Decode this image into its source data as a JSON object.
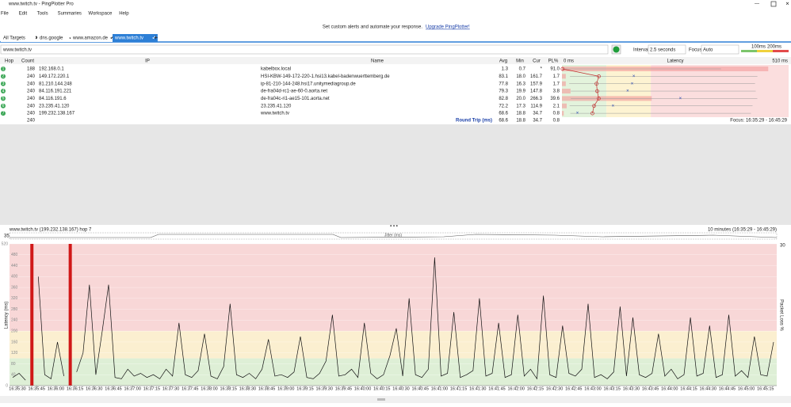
{
  "window": {
    "title": "www.twitch.tv - PingPlotter Pro"
  },
  "menu": [
    "File",
    "Edit",
    "Tools",
    "Summaries",
    "Workspace",
    "Help"
  ],
  "banner": {
    "text": "Set custom alerts and automate your response.",
    "link": "Upgrade PingPlotter!"
  },
  "tabs": [
    "All Targets",
    "dns.google",
    "www.amazon.de",
    "www.twitch.tv"
  ],
  "toolbar": {
    "target": "www.twitch.tv",
    "interval_label": "Interval",
    "interval": "2.5 seconds",
    "focus_label": "Focus",
    "focus": "Auto",
    "legend": [
      "100ms",
      "200ms"
    ]
  },
  "table": {
    "headers": [
      "Hop",
      "Count",
      "IP",
      "Name",
      "Avg",
      "Min",
      "Cur",
      "PL%",
      "Latency"
    ],
    "rows": [
      [
        "1",
        "188",
        "192.168.0.1",
        "kabelbox.local",
        "1.3",
        "0.7",
        "*",
        "91.0"
      ],
      [
        "2",
        "240",
        "149.172.220.1",
        "HSI-KBW-149-172-220-1.hsi13.kabel-badenwuerttemberg.de",
        "83.1",
        "18.0",
        "161.7",
        "1.7"
      ],
      [
        "3",
        "240",
        "81.210.144.248",
        "ip-81-210-144-248.hsi17.unitymediagroup.de",
        "77.8",
        "16.3",
        "157.9",
        "1.7"
      ],
      [
        "4",
        "240",
        "84.116.191.221",
        "de-fra04d-rc1-ae-60-0.aorta.net",
        "79.3",
        "19.9",
        "147.8",
        "3.8"
      ],
      [
        "5",
        "240",
        "84.116.191.6",
        "de-fra04c-ri1-ae15-101.aorta.net",
        "82.8",
        "20.0",
        "266.3",
        "39.6"
      ],
      [
        "6",
        "240",
        "23.235.41.120",
        "23.235.41.120",
        "72.2",
        "17.3",
        "114.9",
        "2.1"
      ],
      [
        "7",
        "240",
        "199.232.138.167",
        "www.twitch.tv",
        "68.6",
        "18.8",
        "34.7",
        "0.8"
      ]
    ],
    "footer": {
      "count": "240",
      "label": "Round Trip (ms)",
      "avg": "68.6",
      "min": "18.8",
      "cur": "34.7",
      "pl": "0.8",
      "focus": "Focus: 16:35:29 - 16:45:29"
    },
    "latency_scale": [
      "0 ms",
      "510 ms"
    ]
  },
  "graph": {
    "title": "www.twitch.tv (199.232.138.167) hop 7",
    "range": "10 minutes (16:35:29 - 16:45:29)",
    "jitter_label": "Jitter (ms)",
    "jitter_max": "35",
    "y_label": "Latency (ms)",
    "y2_label": "Packet Loss %",
    "y2_max": "30",
    "ylim": [
      0,
      520
    ],
    "yticks": [
      0,
      40,
      80,
      120,
      160,
      200,
      240,
      280,
      320,
      360,
      400,
      440,
      480,
      520
    ],
    "zones": [
      100,
      200
    ],
    "times": [
      "16:35:30",
      "16:35:45",
      "16:36:00",
      "16:36:15",
      "16:36:30",
      "16:36:45",
      "16:37:00",
      "16:37:15",
      "16:37:30",
      "16:37:45",
      "16:38:00",
      "16:38:15",
      "16:38:30",
      "16:38:45",
      "16:39:00",
      "16:39:15",
      "16:39:30",
      "16:39:45",
      "16:40:00",
      "16:40:15",
      "16:40:30",
      "16:40:45",
      "16:41:00",
      "16:41:15",
      "16:41:30",
      "16:41:45",
      "16:42:00",
      "16:42:15",
      "16:42:30",
      "16:42:45",
      "16:43:00",
      "16:43:15",
      "16:43:30",
      "16:43:45",
      "16:44:00",
      "16:44:15",
      "16:44:30",
      "16:44:45",
      "16:45:00",
      "16:45:15"
    ],
    "latency": [
      30,
      45,
      20,
      null,
      400,
      40,
      25,
      160,
      35,
      null,
      50,
      120,
      370,
      40,
      200,
      370,
      30,
      25,
      60,
      35,
      45,
      30,
      40,
      25,
      60,
      35,
      230,
      40,
      30,
      55,
      190,
      35,
      25,
      70,
      300,
      40,
      30,
      45,
      25,
      60,
      170,
      35,
      40,
      30,
      50,
      180,
      30,
      25,
      45,
      90,
      260,
      35,
      40,
      60,
      30,
      230,
      45,
      25,
      40,
      110,
      210,
      35,
      320,
      40,
      30,
      60,
      470,
      35,
      45,
      270,
      30,
      40,
      55,
      320,
      35,
      45,
      230,
      30,
      40,
      260,
      35,
      60,
      25,
      330,
      40,
      30,
      220,
      45,
      35,
      60,
      300,
      30,
      40,
      25,
      50,
      290,
      35,
      250,
      40,
      30,
      45,
      190,
      35,
      60,
      25,
      40,
      250,
      35,
      45,
      220,
      30,
      40,
      260,
      35,
      55,
      30,
      180,
      40,
      35,
      160
    ],
    "lost_samples": [
      3,
      9
    ]
  }
}
